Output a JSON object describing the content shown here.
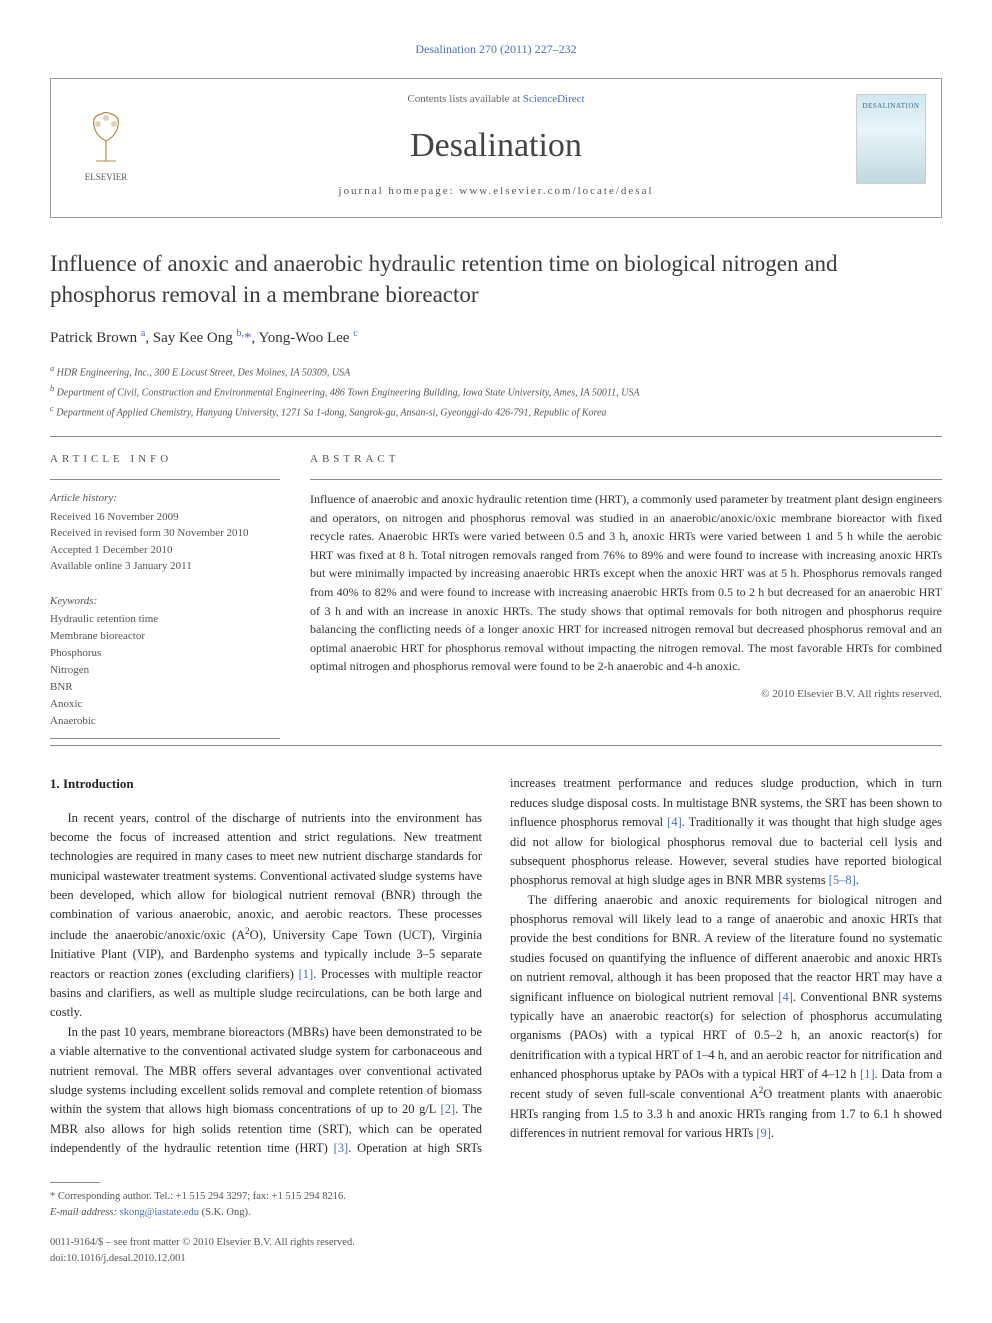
{
  "journal_ref": "Desalination 270 (2011) 227–232",
  "header": {
    "contents_prefix": "Contents lists available at ",
    "contents_link": "ScienceDirect",
    "journal_name": "Desalination",
    "homepage_label": "journal homepage: www.elsevier.com/locate/desal",
    "elsevier_label": "ELSEVIER",
    "cover_label": "DESALINATION"
  },
  "title": "Influence of anoxic and anaerobic hydraulic retention time on biological nitrogen and phosphorus removal in a membrane bioreactor",
  "authors_html": "Patrick Brown <sup>a</sup>, Say Kee Ong <sup>b,</sup><span class='star'>*</span>, Yong-Woo Lee <sup>c</sup>",
  "affiliations": [
    "a HDR Engineering, Inc., 300 E Locust Street, Des Moines, IA 50309, USA",
    "b Department of Civil, Construction and Environmental Engineering, 486 Town Engineering Building, Iowa State University, Ames, IA 50011, USA",
    "c Department of Applied Chemistry, Hanyang University, 1271 Sa 1-dong, Sangrok-gu, Ansan-si, Gyeonggi-do 426-791, Republic of Korea"
  ],
  "info_left": {
    "section_label": "ARTICLE INFO",
    "history_label": "Article history:",
    "history": [
      "Received 16 November 2009",
      "Received in revised form 30 November 2010",
      "Accepted 1 December 2010",
      "Available online 3 January 2011"
    ],
    "kw_label": "Keywords:",
    "keywords": [
      "Hydraulic retention time",
      "Membrane bioreactor",
      "Phosphorus",
      "Nitrogen",
      "BNR",
      "Anoxic",
      "Anaerobic"
    ]
  },
  "abstract": {
    "label": "ABSTRACT",
    "text": "Influence of anaerobic and anoxic hydraulic retention time (HRT), a commonly used parameter by treatment plant design engineers and operators, on nitrogen and phosphorus removal was studied in an anaerobic/anoxic/oxic membrane bioreactor with fixed recycle rates. Anaerobic HRTs were varied between 0.5 and 3 h, anoxic HRTs were varied between 1 and 5 h while the aerobic HRT was fixed at 8 h. Total nitrogen removals ranged from 76% to 89% and were found to increase with increasing anoxic HRTs but were minimally impacted by increasing anaerobic HRTs except when the anoxic HRT was at 5 h. Phosphorus removals ranged from 40% to 82% and were found to increase with increasing anaerobic HRTs from 0.5 to 2 h but decreased for an anaerobic HRT of 3 h and with an increase in anoxic HRTs. The study shows that optimal removals for both nitrogen and phosphorus require balancing the conflicting needs of a longer anoxic HRT for increased nitrogen removal but decreased phosphorus removal and an optimal anaerobic HRT for phosphorus removal without impacting the nitrogen removal. The most favorable HRTs for combined optimal nitrogen and phosphorus removal were found to be 2-h anaerobic and 4-h anoxic.",
    "copyright": "© 2010 Elsevier B.V. All rights reserved."
  },
  "body": {
    "heading": "1. Introduction",
    "p1": "In recent years, control of the discharge of nutrients into the environment has become the focus of increased attention and strict regulations. New treatment technologies are required in many cases to meet new nutrient discharge standards for municipal wastewater treatment systems. Conventional activated sludge systems have been developed, which allow for biological nutrient removal (BNR) through the combination of various anaerobic, anoxic, and aerobic reactors. These processes include the anaerobic/anoxic/oxic (A²O), University Cape Town (UCT), Virginia Initiative Plant (VIP), and Bardenpho systems and typically include 3–5 separate reactors or reaction zones (excluding clarifiers) [1]. Processes with multiple reactor basins and clarifiers, as well as multiple sludge recirculations, can be both large and costly.",
    "p2": "In the past 10 years, membrane bioreactors (MBRs) have been demonstrated to be a viable alternative to the conventional activated sludge system for carbonaceous and nutrient removal. The MBR offers several advantages over conventional activated sludge systems including excellent solids removal and complete retention of biomass within the system that allows high biomass concentrations of up to 20 g/L [2]. The MBR also allows for high solids retention time (SRT), which can be operated independently of the hydraulic retention time (HRT) [3]. Operation at high SRTs increases treatment performance and reduces sludge production, which in turn reduces sludge disposal costs. In multistage BNR systems, the SRT has been shown to influence phosphorus removal [4]. Traditionally it was thought that high sludge ages did not allow for biological phosphorus removal due to bacterial cell lysis and subsequent phosphorus release. However, several studies have reported biological phosphorus removal at high sludge ages in BNR MBR systems [5–8].",
    "p3": "The differing anaerobic and anoxic requirements for biological nitrogen and phosphorus removal will likely lead to a range of anaerobic and anoxic HRTs that provide the best conditions for BNR. A review of the literature found no systematic studies focused on quantifying the influence of different anaerobic and anoxic HRTs on nutrient removal, although it has been proposed that the reactor HRT may have a significant influence on biological nutrient removal [4]. Conventional BNR systems typically have an anaerobic reactor(s) for selection of phosphorus accumulating organisms (PAOs) with a typical HRT of 0.5–2 h, an anoxic reactor(s) for denitrification with a typical HRT of 1–4 h, and an aerobic reactor for nitrification and enhanced phosphorus uptake by PAOs with a typical HRT of 4–12 h [1]. Data from a recent study of seven full-scale conventional A²O treatment plants with anaerobic HRTs ranging from 1.5 to 3.3 h and anoxic HRTs ranging from 1.7 to 6.1 h showed differences in nutrient removal for various HRTs [9]."
  },
  "footer": {
    "corr": "* Corresponding author. Tel.: +1 515 294 3297; fax: +1 515 294 8216.",
    "email_label": "E-mail address:",
    "email": "skong@iastate.edu",
    "email_who": "(S.K. Ong).",
    "issn": "0011-9164/$ – see front matter © 2010 Elsevier B.V. All rights reserved.",
    "doi": "doi:10.1016/j.desal.2010.12.001"
  },
  "colors": {
    "link": "#4a6fb5",
    "text": "#333333",
    "rule": "#888888"
  }
}
